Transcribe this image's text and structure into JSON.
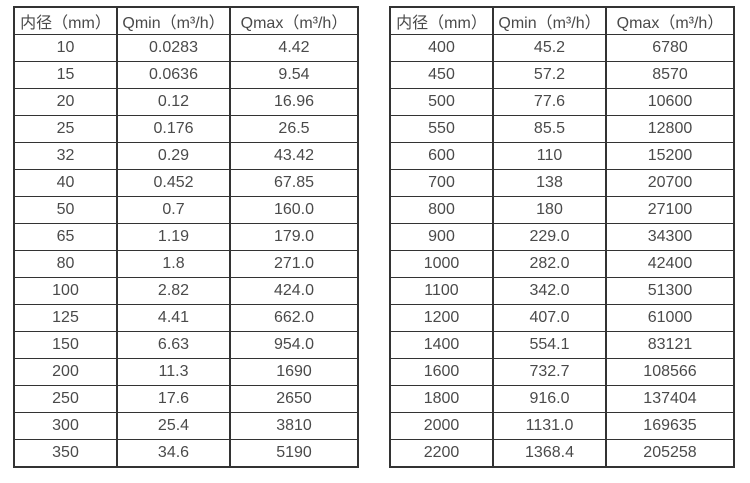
{
  "page": {
    "description": "Two side-by-side specification tables listing minimum and maximum flow rates by inner diameter",
    "background": "#ffffff"
  },
  "colors": {
    "border": "#333333",
    "text": "#4a4a4a",
    "background": "#ffffff"
  },
  "chart_data": [
    {
      "type": "table",
      "title": "",
      "columns": [
        "内径（mm）",
        "Qmin（m³/h）",
        "Qmax（m³/h）"
      ],
      "rows": [
        [
          "10",
          "0.0283",
          "4.42"
        ],
        [
          "15",
          "0.0636",
          "9.54"
        ],
        [
          "20",
          "0.12",
          "16.96"
        ],
        [
          "25",
          "0.176",
          "26.5"
        ],
        [
          "32",
          "0.29",
          "43.42"
        ],
        [
          "40",
          "0.452",
          "67.85"
        ],
        [
          "50",
          "0.7",
          "160.0"
        ],
        [
          "65",
          "1.19",
          "179.0"
        ],
        [
          "80",
          "1.8",
          "271.0"
        ],
        [
          "100",
          "2.82",
          "424.0"
        ],
        [
          "125",
          "4.41",
          "662.0"
        ],
        [
          "150",
          "6.63",
          "954.0"
        ],
        [
          "200",
          "11.3",
          "1690"
        ],
        [
          "250",
          "17.6",
          "2650"
        ],
        [
          "300",
          "25.4",
          "3810"
        ],
        [
          "350",
          "34.6",
          "5190"
        ]
      ]
    },
    {
      "type": "table",
      "title": "",
      "columns": [
        "内径（mm）",
        "Qmin（m³/h）",
        "Qmax（m³/h）"
      ],
      "rows": [
        [
          "400",
          "45.2",
          "6780"
        ],
        [
          "450",
          "57.2",
          "8570"
        ],
        [
          "500",
          "77.6",
          "10600"
        ],
        [
          "550",
          "85.5",
          "12800"
        ],
        [
          "600",
          "110",
          "15200"
        ],
        [
          "700",
          "138",
          "20700"
        ],
        [
          "800",
          "180",
          "27100"
        ],
        [
          "900",
          "229.0",
          "34300"
        ],
        [
          "1000",
          "282.0",
          "42400"
        ],
        [
          "1100",
          "342.0",
          "51300"
        ],
        [
          "1200",
          "407.0",
          "61000"
        ],
        [
          "1400",
          "554.1",
          "83121"
        ],
        [
          "1600",
          "732.7",
          "108566"
        ],
        [
          "1800",
          "916.0",
          "137404"
        ],
        [
          "2000",
          "1131.0",
          "169635"
        ],
        [
          "2200",
          "1368.4",
          "205258"
        ]
      ]
    }
  ]
}
